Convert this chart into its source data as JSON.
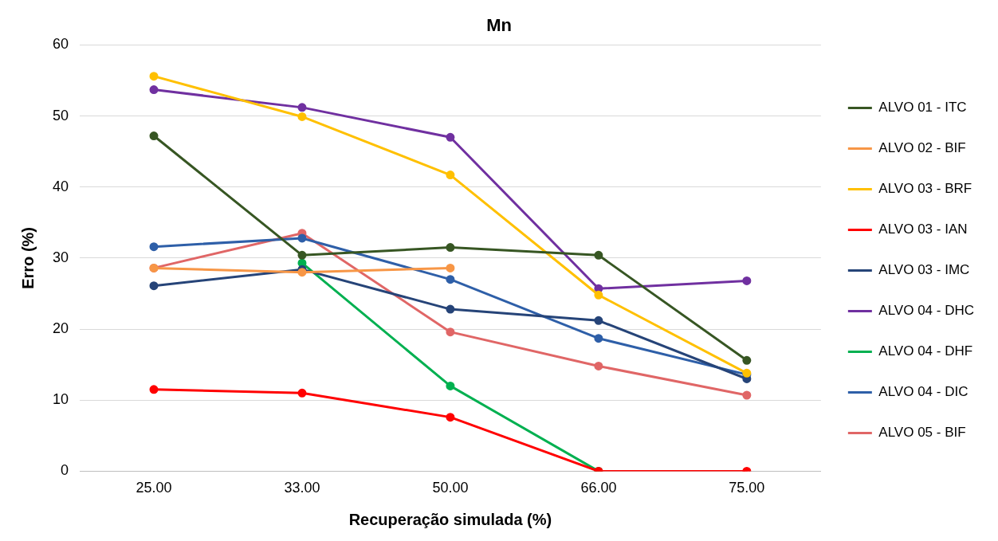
{
  "chart_data": {
    "type": "line",
    "title": "Mn",
    "xlabel": "Recuperação simulada (%)",
    "ylabel": "Erro (%)",
    "categories": [
      "25.00",
      "33.00",
      "50.00",
      "66.00",
      "75.00"
    ],
    "ylim": [
      0,
      60
    ],
    "yticks": [
      0,
      10,
      20,
      30,
      40,
      50,
      60
    ],
    "grid": "y",
    "legend": "right",
    "marker": "circle",
    "line_style": "solid",
    "series": [
      {
        "name": "ALVO 01 - ITC",
        "color": "#375623",
        "values": [
          47.2,
          30.4,
          31.5,
          30.4,
          15.6
        ]
      },
      {
        "name": "ALVO 02 - BIF",
        "color": "#f79646",
        "values": [
          28.6,
          28.0,
          28.6,
          null,
          null
        ]
      },
      {
        "name": "ALVO 03 - BRF",
        "color": "#ffc000",
        "values": [
          55.6,
          49.9,
          41.7,
          24.8,
          13.8
        ]
      },
      {
        "name": "ALVO 03 - IAN",
        "color": "#ff0000",
        "values": [
          11.5,
          11.0,
          7.6,
          0,
          0
        ]
      },
      {
        "name": "ALVO 03 - IMC",
        "color": "#264478",
        "values": [
          26.1,
          28.4,
          22.8,
          21.2,
          13.0
        ]
      },
      {
        "name": "ALVO 04 - DHC",
        "color": "#7030a0",
        "values": [
          53.7,
          51.2,
          47.0,
          25.7,
          26.8
        ]
      },
      {
        "name": "ALVO 04 - DHF",
        "color": "#00b050",
        "values": [
          null,
          29.3,
          12.0,
          0,
          null
        ]
      },
      {
        "name": "ALVO 04 - DIC",
        "color": "#2e5fa8",
        "values": [
          31.6,
          32.8,
          27.0,
          18.7,
          13.6
        ]
      },
      {
        "name": "ALVO 05 - BIF",
        "color": "#e06666",
        "values": [
          28.6,
          33.5,
          19.6,
          14.8,
          10.7
        ]
      }
    ]
  }
}
